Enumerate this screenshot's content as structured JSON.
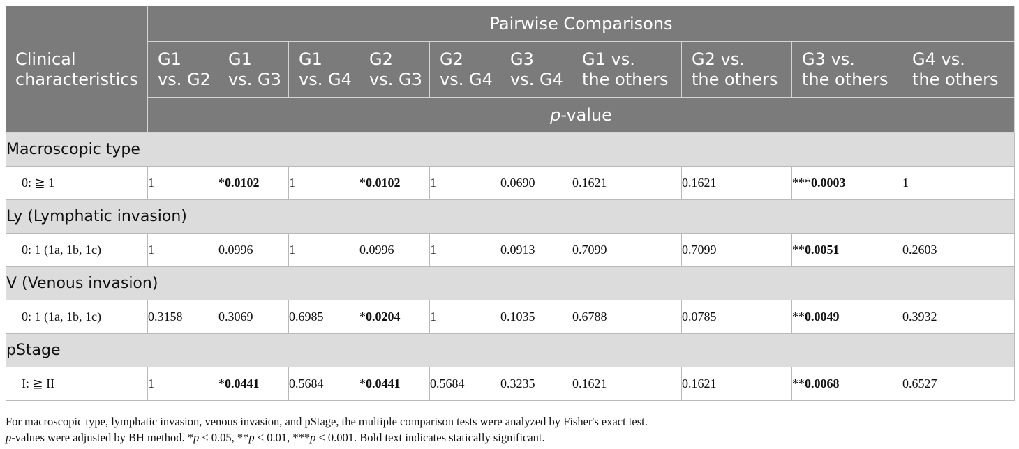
{
  "header": {
    "row_label_line1": "Clinical",
    "row_label_line2": "characteristics",
    "group_title": "Pairwise Comparisons",
    "columns": [
      [
        "G1",
        "vs. G2"
      ],
      [
        "G1",
        "vs. G3"
      ],
      [
        "G1",
        "vs. G4"
      ],
      [
        "G2",
        "vs. G3"
      ],
      [
        "G2",
        "vs. G4"
      ],
      [
        "G3",
        "vs. G4"
      ],
      [
        "G1 vs.",
        "the others"
      ],
      [
        "G2 vs.",
        "the others"
      ],
      [
        "G3 vs.",
        "the others"
      ],
      [
        "G4 vs.",
        "the others"
      ]
    ],
    "pvalue_italic": "p",
    "pvalue_rest": "-value"
  },
  "sections": [
    {
      "title": "Macroscopic type",
      "row_label": "0: ≧ 1",
      "cells": [
        {
          "stars": "",
          "value": "1",
          "bold": false
        },
        {
          "stars": "*",
          "value": "0.0102",
          "bold": true
        },
        {
          "stars": "",
          "value": "1",
          "bold": false
        },
        {
          "stars": "*",
          "value": "0.0102",
          "bold": true
        },
        {
          "stars": "",
          "value": "1",
          "bold": false
        },
        {
          "stars": "",
          "value": "0.0690",
          "bold": false
        },
        {
          "stars": "",
          "value": "0.1621",
          "bold": false
        },
        {
          "stars": "",
          "value": "0.1621",
          "bold": false
        },
        {
          "stars": "***",
          "value": "0.0003",
          "bold": true
        },
        {
          "stars": "",
          "value": "1",
          "bold": false
        }
      ]
    },
    {
      "title": "Ly (Lymphatic invasion)",
      "row_label": "0: 1 (1a, 1b, 1c)",
      "cells": [
        {
          "stars": "",
          "value": "1",
          "bold": false
        },
        {
          "stars": "",
          "value": "0.0996",
          "bold": false
        },
        {
          "stars": "",
          "value": "1",
          "bold": false
        },
        {
          "stars": "",
          "value": "0.0996",
          "bold": false
        },
        {
          "stars": "",
          "value": "1",
          "bold": false
        },
        {
          "stars": "",
          "value": "0.0913",
          "bold": false
        },
        {
          "stars": "",
          "value": "0.7099",
          "bold": false
        },
        {
          "stars": "",
          "value": "0.7099",
          "bold": false
        },
        {
          "stars": "**",
          "value": "0.0051",
          "bold": true
        },
        {
          "stars": "",
          "value": "0.2603",
          "bold": false
        }
      ]
    },
    {
      "title": "V (Venous invasion)",
      "row_label": "0: 1 (1a, 1b, 1c)",
      "cells": [
        {
          "stars": "",
          "value": "0.3158",
          "bold": false
        },
        {
          "stars": "",
          "value": "0.3069",
          "bold": false
        },
        {
          "stars": "",
          "value": "0.6985",
          "bold": false
        },
        {
          "stars": "*",
          "value": "0.0204",
          "bold": true
        },
        {
          "stars": "",
          "value": "1",
          "bold": false
        },
        {
          "stars": "",
          "value": "0.1035",
          "bold": false
        },
        {
          "stars": "",
          "value": "0.6788",
          "bold": false
        },
        {
          "stars": "",
          "value": "0.0785",
          "bold": false
        },
        {
          "stars": "**",
          "value": "0.0049",
          "bold": true
        },
        {
          "stars": "",
          "value": "0.3932",
          "bold": false
        }
      ]
    },
    {
      "title": "pStage",
      "row_label": "I: ≧ II",
      "cells": [
        {
          "stars": "",
          "value": "1",
          "bold": false
        },
        {
          "stars": "*",
          "value": "0.0441",
          "bold": true
        },
        {
          "stars": "",
          "value": "0.5684",
          "bold": false
        },
        {
          "stars": "*",
          "value": "0.0441",
          "bold": true
        },
        {
          "stars": "",
          "value": "0.5684",
          "bold": false
        },
        {
          "stars": "",
          "value": "0.3235",
          "bold": false
        },
        {
          "stars": "",
          "value": "0.1621",
          "bold": false
        },
        {
          "stars": "",
          "value": "0.1621",
          "bold": false
        },
        {
          "stars": "**",
          "value": "0.0068",
          "bold": true
        },
        {
          "stars": "",
          "value": "0.6527",
          "bold": false
        }
      ]
    }
  ],
  "footnotes": {
    "line1": "For macroscopic type, lymphatic invasion, venous invasion, and pStage, the multiple comparison tests were analyzed by Fisher's exact test.",
    "line2": [
      {
        "text": "p",
        "italic": true
      },
      {
        "text": "-values were adjusted by BH method. *",
        "italic": false
      },
      {
        "text": "p",
        "italic": true
      },
      {
        "text": " < 0.05, **",
        "italic": false
      },
      {
        "text": "p",
        "italic": true
      },
      {
        "text": " < 0.01, ***",
        "italic": false
      },
      {
        "text": "p",
        "italic": true
      },
      {
        "text": " < 0.001. Bold text indicates statically significant.",
        "italic": false
      }
    ]
  },
  "colors": {
    "header_bg": "#7a7b7a",
    "section_bg": "#dcdcdc",
    "border": "#b9b9b9"
  }
}
